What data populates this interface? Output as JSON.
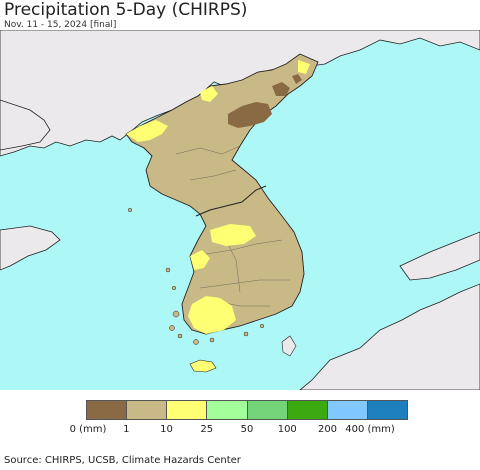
{
  "title": "Precipitation 5-Day (CHIRPS)",
  "subtitle": "Nov. 11 - 15, 2024 [final]",
  "source": "Source: CHIRPS, UCSB, Climate Hazards Center",
  "colors": {
    "ocean": "#aef7f7",
    "outside_land": "#ece9ec",
    "bin_0_1": "#8a6a44",
    "bin_1_10": "#c9b987",
    "bin_10_25": "#ffff73",
    "bin_25_50": "#a3ff9a",
    "bin_50_100": "#73d47a",
    "bin_100_200": "#3aaa10",
    "bin_200_400": "#80c8ff",
    "bin_400_plus": "#1e7fbf"
  },
  "legend": {
    "swatches": [
      "#8a6a44",
      "#c9b987",
      "#ffff73",
      "#a3ff9a",
      "#73d47a",
      "#3aaa10",
      "#80c8ff",
      "#1e7fbf"
    ],
    "ticks": [
      "0 (mm)",
      "1",
      "10",
      "25",
      "50",
      "100",
      "200",
      "400 (mm)"
    ]
  }
}
